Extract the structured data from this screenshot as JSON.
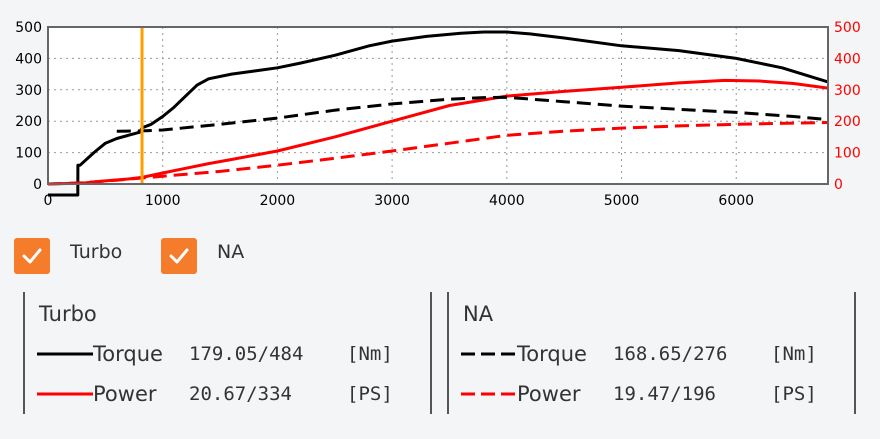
{
  "chart_data": {
    "type": "line",
    "x_ticks": [
      "0",
      "1000",
      "2000",
      "3000",
      "4000",
      "5000",
      "6000"
    ],
    "y_left_ticks": [
      "0",
      "100",
      "200",
      "300",
      "400",
      "500"
    ],
    "y_right_ticks": [
      "0",
      "100",
      "200",
      "300",
      "400",
      "500"
    ],
    "xlim": [
      0,
      6800
    ],
    "ylim_left": [
      0,
      500
    ],
    "ylim_right": [
      0,
      500
    ],
    "grid": true,
    "cursor_x": 820,
    "colors": {
      "torque": "#000000",
      "power": "#ff0000",
      "left_axis": "#000000",
      "right_axis": "#ff0000",
      "cursor": "#ff9f00"
    },
    "series": [
      {
        "name": "Turbo Torque",
        "axis": "left",
        "style": "solid",
        "color": "#000000",
        "x": [
          0,
          260,
          261,
          280,
          400,
          500,
          600,
          700,
          800,
          820,
          900,
          1000,
          1100,
          1200,
          1300,
          1400,
          1600,
          1800,
          2000,
          2200,
          2500,
          2800,
          3000,
          3300,
          3600,
          3800,
          4000,
          4200,
          4500,
          5000,
          5500,
          6000,
          6400,
          6800
        ],
        "y": [
          -35,
          -35,
          60,
          60,
          100,
          130,
          145,
          155,
          165,
          179,
          190,
          215,
          245,
          280,
          315,
          335,
          350,
          360,
          370,
          385,
          410,
          440,
          455,
          470,
          480,
          484,
          484,
          478,
          465,
          440,
          425,
          400,
          370,
          325
        ]
      },
      {
        "name": "Turbo Power",
        "axis": "right",
        "style": "solid",
        "color": "#ff0000",
        "x": [
          0,
          300,
          500,
          700,
          820,
          1000,
          1200,
          1400,
          1600,
          2000,
          2500,
          3000,
          3500,
          4000,
          4500,
          5000,
          5500,
          5900,
          6200,
          6500,
          6800
        ],
        "y": [
          0,
          3,
          10,
          16,
          21,
          35,
          50,
          65,
          78,
          105,
          150,
          200,
          250,
          280,
          295,
          308,
          322,
          330,
          328,
          320,
          305
        ]
      },
      {
        "name": "NA Torque",
        "axis": "left",
        "style": "dashed",
        "color": "#000000",
        "x": [
          600,
          820,
          1000,
          1500,
          2000,
          2500,
          3000,
          3500,
          3800,
          4000,
          4500,
          5000,
          5500,
          6000,
          6500,
          6800
        ],
        "y": [
          168,
          169,
          172,
          190,
          210,
          235,
          255,
          270,
          275,
          276,
          262,
          248,
          238,
          228,
          215,
          205
        ]
      },
      {
        "name": "NA Power",
        "axis": "right",
        "style": "dashed",
        "color": "#ff0000",
        "x": [
          0,
          300,
          600,
          820,
          1000,
          1500,
          2000,
          2500,
          3000,
          3500,
          4000,
          4500,
          5000,
          5500,
          6000,
          6500,
          6800
        ],
        "y": [
          0,
          4,
          12,
          19,
          25,
          40,
          60,
          82,
          105,
          130,
          155,
          168,
          178,
          185,
          190,
          194,
          196
        ]
      }
    ]
  },
  "checkboxes": [
    {
      "label": "Turbo",
      "checked": true
    },
    {
      "label": "NA",
      "checked": true
    }
  ],
  "panels": [
    {
      "title": "Turbo",
      "rows": [
        {
          "name": "Torque",
          "value": "179.05/484",
          "unit": "[Nm]"
        },
        {
          "name": "Power",
          "value": "20.67/334",
          "unit": "[PS]"
        }
      ]
    },
    {
      "title": "NA",
      "rows": [
        {
          "name": "Torque",
          "value": "168.65/276",
          "unit": "[Nm]"
        },
        {
          "name": "Power",
          "value": "19.47/196",
          "unit": "[PS]"
        }
      ]
    }
  ]
}
